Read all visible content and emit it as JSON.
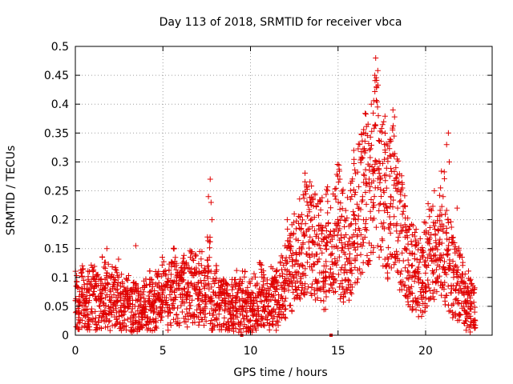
{
  "chart_data": {
    "type": "scatter",
    "title": "Day 113 of 2018, SRMTID for receiver vbca",
    "xlabel": "GPS time / hours",
    "ylabel": "SRMTID / TECUs",
    "xlim": [
      0,
      23.8
    ],
    "ylim": [
      0,
      0.5
    ],
    "x_ticks": [
      "0",
      "5",
      "10",
      "15",
      "20"
    ],
    "y_ticks": [
      "0",
      "0.05",
      "0.1",
      "0.15",
      "0.2",
      "0.25",
      "0.3",
      "0.35",
      "0.4",
      "0.45",
      "0.5"
    ],
    "grid": true,
    "marker": "plus",
    "color": "#e00000",
    "series": [
      {
        "name": "SRMTID",
        "x": [
          0.0,
          0.2,
          0.4,
          0.6,
          0.8,
          1.0,
          1.2,
          1.4,
          1.6,
          1.8,
          2.0,
          2.2,
          2.4,
          2.6,
          2.8,
          3.0,
          3.2,
          3.4,
          3.6,
          3.8,
          4.0,
          4.2,
          4.4,
          4.6,
          4.8,
          5.0,
          5.2,
          5.4,
          5.6,
          5.8,
          6.0,
          6.2,
          6.4,
          6.6,
          6.8,
          7.0,
          7.2,
          7.4,
          7.6,
          7.8,
          8.0,
          8.2,
          8.4,
          8.6,
          8.8,
          9.0,
          9.2,
          9.4,
          9.6,
          9.8,
          10.0,
          10.2,
          10.4,
          10.6,
          10.8,
          11.0,
          11.2,
          11.4,
          11.6,
          11.8,
          12.0,
          12.2,
          12.4,
          12.6,
          12.8,
          13.0,
          13.2,
          13.4,
          13.6,
          13.8,
          14.0,
          14.2,
          14.4,
          14.6,
          14.8,
          15.0,
          15.2,
          15.4,
          15.6,
          15.8,
          16.0,
          16.2,
          16.4,
          16.6,
          16.8,
          17.0,
          17.2,
          17.4,
          17.6,
          17.8,
          18.0,
          18.2,
          18.4,
          18.6,
          18.8,
          19.0,
          19.2,
          19.4,
          19.6,
          19.8,
          20.0,
          20.2,
          20.4,
          20.6,
          20.8,
          21.0,
          21.2,
          21.4,
          21.6,
          21.8,
          22.0,
          22.2,
          22.4,
          22.6,
          22.8,
          7.6,
          7.7,
          7.75,
          7.8,
          16.9,
          17.1,
          17.15,
          17.2,
          17.3,
          21.2,
          21.3,
          21.35,
          15.9,
          16.0,
          13.2,
          13.4,
          1.8,
          3.45,
          12.1,
          12.5,
          14.4,
          15.1,
          18.3,
          20.5,
          21.0,
          21.8
        ],
        "y": [
          0.06,
          0.05,
          0.07,
          0.05,
          0.06,
          0.07,
          0.06,
          0.05,
          0.08,
          0.07,
          0.06,
          0.07,
          0.08,
          0.06,
          0.05,
          0.06,
          0.04,
          0.05,
          0.05,
          0.04,
          0.05,
          0.06,
          0.05,
          0.06,
          0.07,
          0.08,
          0.06,
          0.07,
          0.09,
          0.08,
          0.07,
          0.08,
          0.07,
          0.09,
          0.08,
          0.07,
          0.09,
          0.07,
          0.11,
          0.06,
          0.07,
          0.05,
          0.06,
          0.05,
          0.04,
          0.05,
          0.06,
          0.05,
          0.06,
          0.04,
          0.05,
          0.06,
          0.05,
          0.07,
          0.06,
          0.05,
          0.07,
          0.06,
          0.07,
          0.08,
          0.09,
          0.11,
          0.12,
          0.13,
          0.15,
          0.16,
          0.18,
          0.17,
          0.16,
          0.14,
          0.15,
          0.12,
          0.16,
          0.14,
          0.18,
          0.19,
          0.16,
          0.14,
          0.15,
          0.17,
          0.2,
          0.22,
          0.24,
          0.26,
          0.25,
          0.28,
          0.3,
          0.27,
          0.25,
          0.22,
          0.24,
          0.26,
          0.22,
          0.18,
          0.15,
          0.13,
          0.12,
          0.11,
          0.1,
          0.09,
          0.12,
          0.14,
          0.15,
          0.13,
          0.16,
          0.18,
          0.14,
          0.12,
          0.1,
          0.09,
          0.08,
          0.07,
          0.06,
          0.05,
          0.04,
          0.24,
          0.27,
          0.23,
          0.2,
          0.4,
          0.45,
          0.48,
          0.43,
          0.38,
          0.33,
          0.35,
          0.3,
          0.32,
          0.28,
          0.26,
          0.23,
          0.15,
          0.155,
          0.2,
          0.21,
          0.25,
          0.27,
          0.29,
          0.25,
          0.24,
          0.22
        ]
      }
    ]
  }
}
